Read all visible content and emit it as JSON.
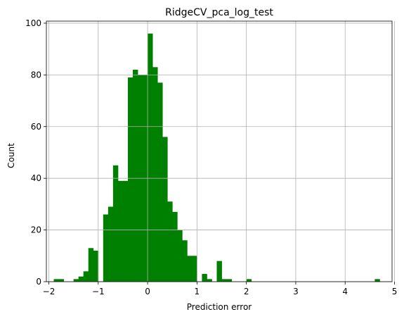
{
  "chart_data": {
    "type": "bar",
    "title": "RidgeCV_pca_log_test",
    "xlabel": "Prediction error",
    "ylabel": "Count",
    "xlim": [
      -2.05,
      4.95
    ],
    "ylim": [
      0,
      100.8
    ],
    "grid": true,
    "bar_color": "#008000",
    "grid_color": "#b0b0b0",
    "bin_width": 0.1,
    "x_ticks": [
      -2,
      -1,
      0,
      1,
      2,
      3,
      4,
      5
    ],
    "x_tick_labels": [
      "−2",
      "−1",
      "0",
      "1",
      "2",
      "3",
      "4",
      "5"
    ],
    "y_ticks": [
      0,
      20,
      40,
      60,
      80,
      100
    ],
    "y_tick_labels": [
      "0",
      "20",
      "40",
      "60",
      "80",
      "100"
    ],
    "bins": [
      {
        "x": -1.85,
        "count": 1
      },
      {
        "x": -1.75,
        "count": 1
      },
      {
        "x": -1.45,
        "count": 1
      },
      {
        "x": -1.35,
        "count": 2
      },
      {
        "x": -1.25,
        "count": 4
      },
      {
        "x": -1.15,
        "count": 13
      },
      {
        "x": -1.05,
        "count": 12
      },
      {
        "x": -0.85,
        "count": 26
      },
      {
        "x": -0.75,
        "count": 29
      },
      {
        "x": -0.65,
        "count": 45
      },
      {
        "x": -0.55,
        "count": 39
      },
      {
        "x": -0.45,
        "count": 39
      },
      {
        "x": -0.35,
        "count": 79
      },
      {
        "x": -0.25,
        "count": 82
      },
      {
        "x": -0.15,
        "count": 80
      },
      {
        "x": -0.05,
        "count": 80
      },
      {
        "x": 0.05,
        "count": 96
      },
      {
        "x": 0.15,
        "count": 83
      },
      {
        "x": 0.25,
        "count": 77
      },
      {
        "x": 0.35,
        "count": 56
      },
      {
        "x": 0.45,
        "count": 31
      },
      {
        "x": 0.55,
        "count": 27
      },
      {
        "x": 0.65,
        "count": 20
      },
      {
        "x": 0.75,
        "count": 16
      },
      {
        "x": 0.85,
        "count": 10
      },
      {
        "x": 0.95,
        "count": 10
      },
      {
        "x": 1.15,
        "count": 3
      },
      {
        "x": 1.25,
        "count": 1
      },
      {
        "x": 1.45,
        "count": 8
      },
      {
        "x": 1.55,
        "count": 1
      },
      {
        "x": 1.65,
        "count": 1
      },
      {
        "x": 2.05,
        "count": 1
      },
      {
        "x": 4.65,
        "count": 1
      }
    ]
  }
}
